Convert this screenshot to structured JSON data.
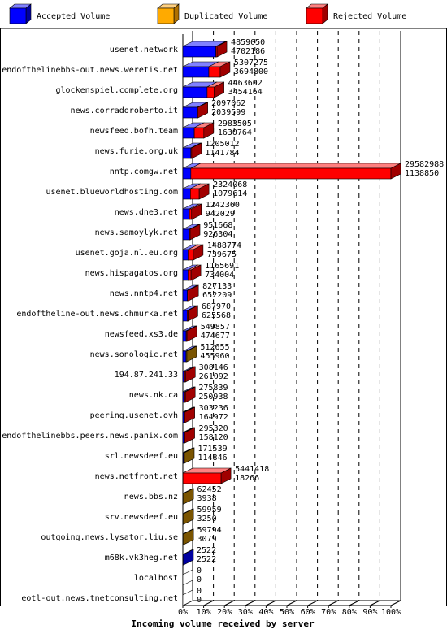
{
  "legend": [
    {
      "label": "Accepted Volume",
      "color": "#0000ff"
    },
    {
      "label": "Duplicated Volume",
      "color": "#ffaa00"
    },
    {
      "label": "Rejected Volume",
      "color": "#ff0000"
    }
  ],
  "chart_data": {
    "type": "bar",
    "orientation": "horizontal",
    "stacked": true,
    "xlabel": "Incoming volume received by server",
    "xlim_percent": [
      0,
      100
    ],
    "x_ticks": [
      "0%",
      "10%",
      "20%",
      "30%",
      "40%",
      "50%",
      "60%",
      "70%",
      "80%",
      "90%",
      "100%"
    ],
    "grid": "vertical dashed",
    "legend_position": "top",
    "categories": [
      "usenet.network",
      "endofthelinebbs-out.news.weretis.net",
      "glockenspiel.complete.org",
      "news.corradoroberto.it",
      "newsfeed.bofh.team",
      "news.furie.org.uk",
      "nntp.comgw.net",
      "usenet.blueworldhosting.com",
      "news.dne3.net",
      "news.samoylyk.net",
      "usenet.goja.nl.eu.org",
      "news.hispagatos.org",
      "news.nntp4.net",
      "endoftheline-out.news.chmurka.net",
      "newsfeed.xs3.de",
      "news.sonologic.net",
      "194.87.241.33",
      "news.nk.ca",
      "peering.usenet.ovh",
      "endofthelinebbs.peers.news.panix.com",
      "srl.newsdeef.eu",
      "news.netfront.net",
      "news.bbs.nz",
      "srv.newsdeef.eu",
      "outgoing.news.lysator.liu.se",
      "m68k.vk3heg.net",
      "localhost",
      "eotl-out.news.tnetconsulting.net"
    ],
    "total_labels": [
      "4859050",
      "5307275",
      "4463602",
      "2097062",
      "2983505",
      "1205012",
      "29582988",
      "2324068",
      "1242360",
      "951668",
      "1488774",
      "1165691",
      "827133",
      "687970",
      "549857",
      "512655",
      "308146",
      "275839",
      "303236",
      "295320",
      "171539",
      "5441418",
      "62452",
      "59959",
      "59794",
      "2522",
      "0",
      "0"
    ],
    "accepted_labels": [
      "4702186",
      "3694800",
      "3454164",
      "2039599",
      "1630764",
      "1141784",
      "1138850",
      "1079614",
      "942029",
      "926304",
      "739675",
      "734004",
      "652209",
      "625568",
      "474677",
      "455960",
      "261092",
      "250938",
      "164972",
      "158120",
      "114846",
      "18266",
      "3938",
      "3250",
      "3079",
      "2522",
      "0",
      "0"
    ],
    "series": [
      {
        "name": "Accepted Volume",
        "values": [
          4702186,
          3694800,
          3454164,
          2039599,
          1630764,
          1141784,
          1138850,
          1079614,
          942029,
          926304,
          739675,
          734004,
          652209,
          625568,
          474677,
          455960,
          261092,
          250938,
          164972,
          158120,
          114846,
          18266,
          3938,
          3250,
          3079,
          2522,
          0,
          0
        ]
      },
      {
        "name": "Duplicated Volume",
        "values": [
          0,
          0,
          0,
          0,
          0,
          0,
          0,
          0,
          0,
          0,
          0,
          0,
          0,
          0,
          0,
          56695,
          0,
          0,
          0,
          0,
          56693,
          0,
          58514,
          56709,
          56715,
          0,
          0,
          0
        ]
      },
      {
        "name": "Rejected Volume",
        "values": [
          156864,
          1612475,
          1009438,
          57463,
          1352741,
          63228,
          28444138,
          1244454,
          300331,
          25364,
          749099,
          431687,
          174924,
          62402,
          75180,
          0,
          47054,
          24901,
          138264,
          137200,
          0,
          5423152,
          0,
          0,
          0,
          0,
          0,
          0
        ]
      }
    ]
  }
}
